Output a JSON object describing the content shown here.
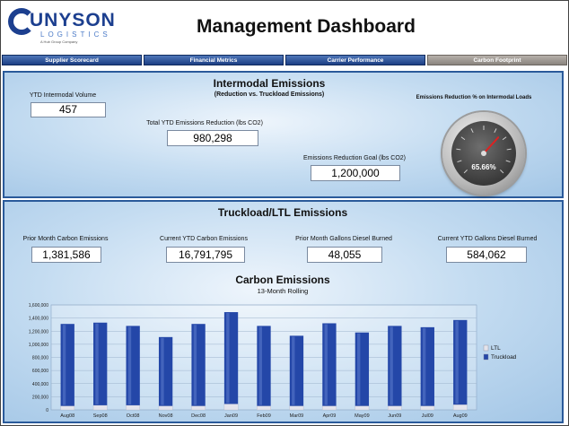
{
  "header": {
    "logo_main": "UNYSON",
    "logo_sub": "LOGISTICS",
    "logo_tag": "A Hub Group Company",
    "title": "Management Dashboard"
  },
  "tabs": [
    {
      "label": "Supplier Scorecard",
      "active": false
    },
    {
      "label": "Financial Metrics",
      "active": false
    },
    {
      "label": "Carrier Performance",
      "active": false
    },
    {
      "label": "Carbon Footprint",
      "active": true
    }
  ],
  "intermodal": {
    "title": "Intermodal Emissions",
    "subtitle": "(Reduction vs. Truckload Emissions)",
    "ytd_volume_label": "YTD Intermodal Volume",
    "ytd_volume_value": "457",
    "total_reduction_label": "Total YTD Emissions Reduction (lbs CO2)",
    "total_reduction_value": "980,298",
    "goal_label": "Emissions Reduction Goal (lbs CO2)",
    "goal_value": "1,200,000",
    "gauge_label": "Emissions Reduction % on Intermodal Loads",
    "gauge_value": "65.66%",
    "gauge_fraction": 0.6566
  },
  "truckload": {
    "title": "Truckload/LTL Emissions",
    "metrics": [
      {
        "label": "Prior Month Carbon Emissions",
        "value": "1,381,586"
      },
      {
        "label": "Current YTD Carbon Emissions",
        "value": "16,791,795"
      },
      {
        "label": "Prior Month Gallons Diesel Burned",
        "value": "48,055"
      },
      {
        "label": "Current YTD Gallons Diesel Burned",
        "value": "584,062"
      }
    ]
  },
  "chart_data": {
    "type": "bar",
    "stacked": true,
    "title": "Carbon Emissions",
    "subtitle": "13-Month Rolling",
    "categories": [
      "Aug08",
      "Sep08",
      "Oct08",
      "Nov08",
      "Dec08",
      "Jan09",
      "Feb09",
      "Mar09",
      "Apr09",
      "May09",
      "Jun09",
      "Jul09",
      "Aug09"
    ],
    "series": [
      {
        "name": "LTL",
        "color": "#e4e4ec",
        "values": [
          60000,
          70000,
          70000,
          60000,
          60000,
          90000,
          60000,
          60000,
          60000,
          60000,
          60000,
          60000,
          80000
        ]
      },
      {
        "name": "Truckload",
        "color": "#2447a8",
        "values": [
          1250000,
          1260000,
          1210000,
          1050000,
          1250000,
          1400000,
          1220000,
          1070000,
          1260000,
          1120000,
          1220000,
          1200000,
          1290000
        ]
      }
    ],
    "yticks": [
      "0",
      "200,000",
      "400,000",
      "600,000",
      "800,000",
      "1,000,000",
      "1,200,000",
      "1,400,000",
      "1,600,000"
    ],
    "ylim": [
      0,
      1600000
    ],
    "grid": true,
    "legend": "right"
  }
}
